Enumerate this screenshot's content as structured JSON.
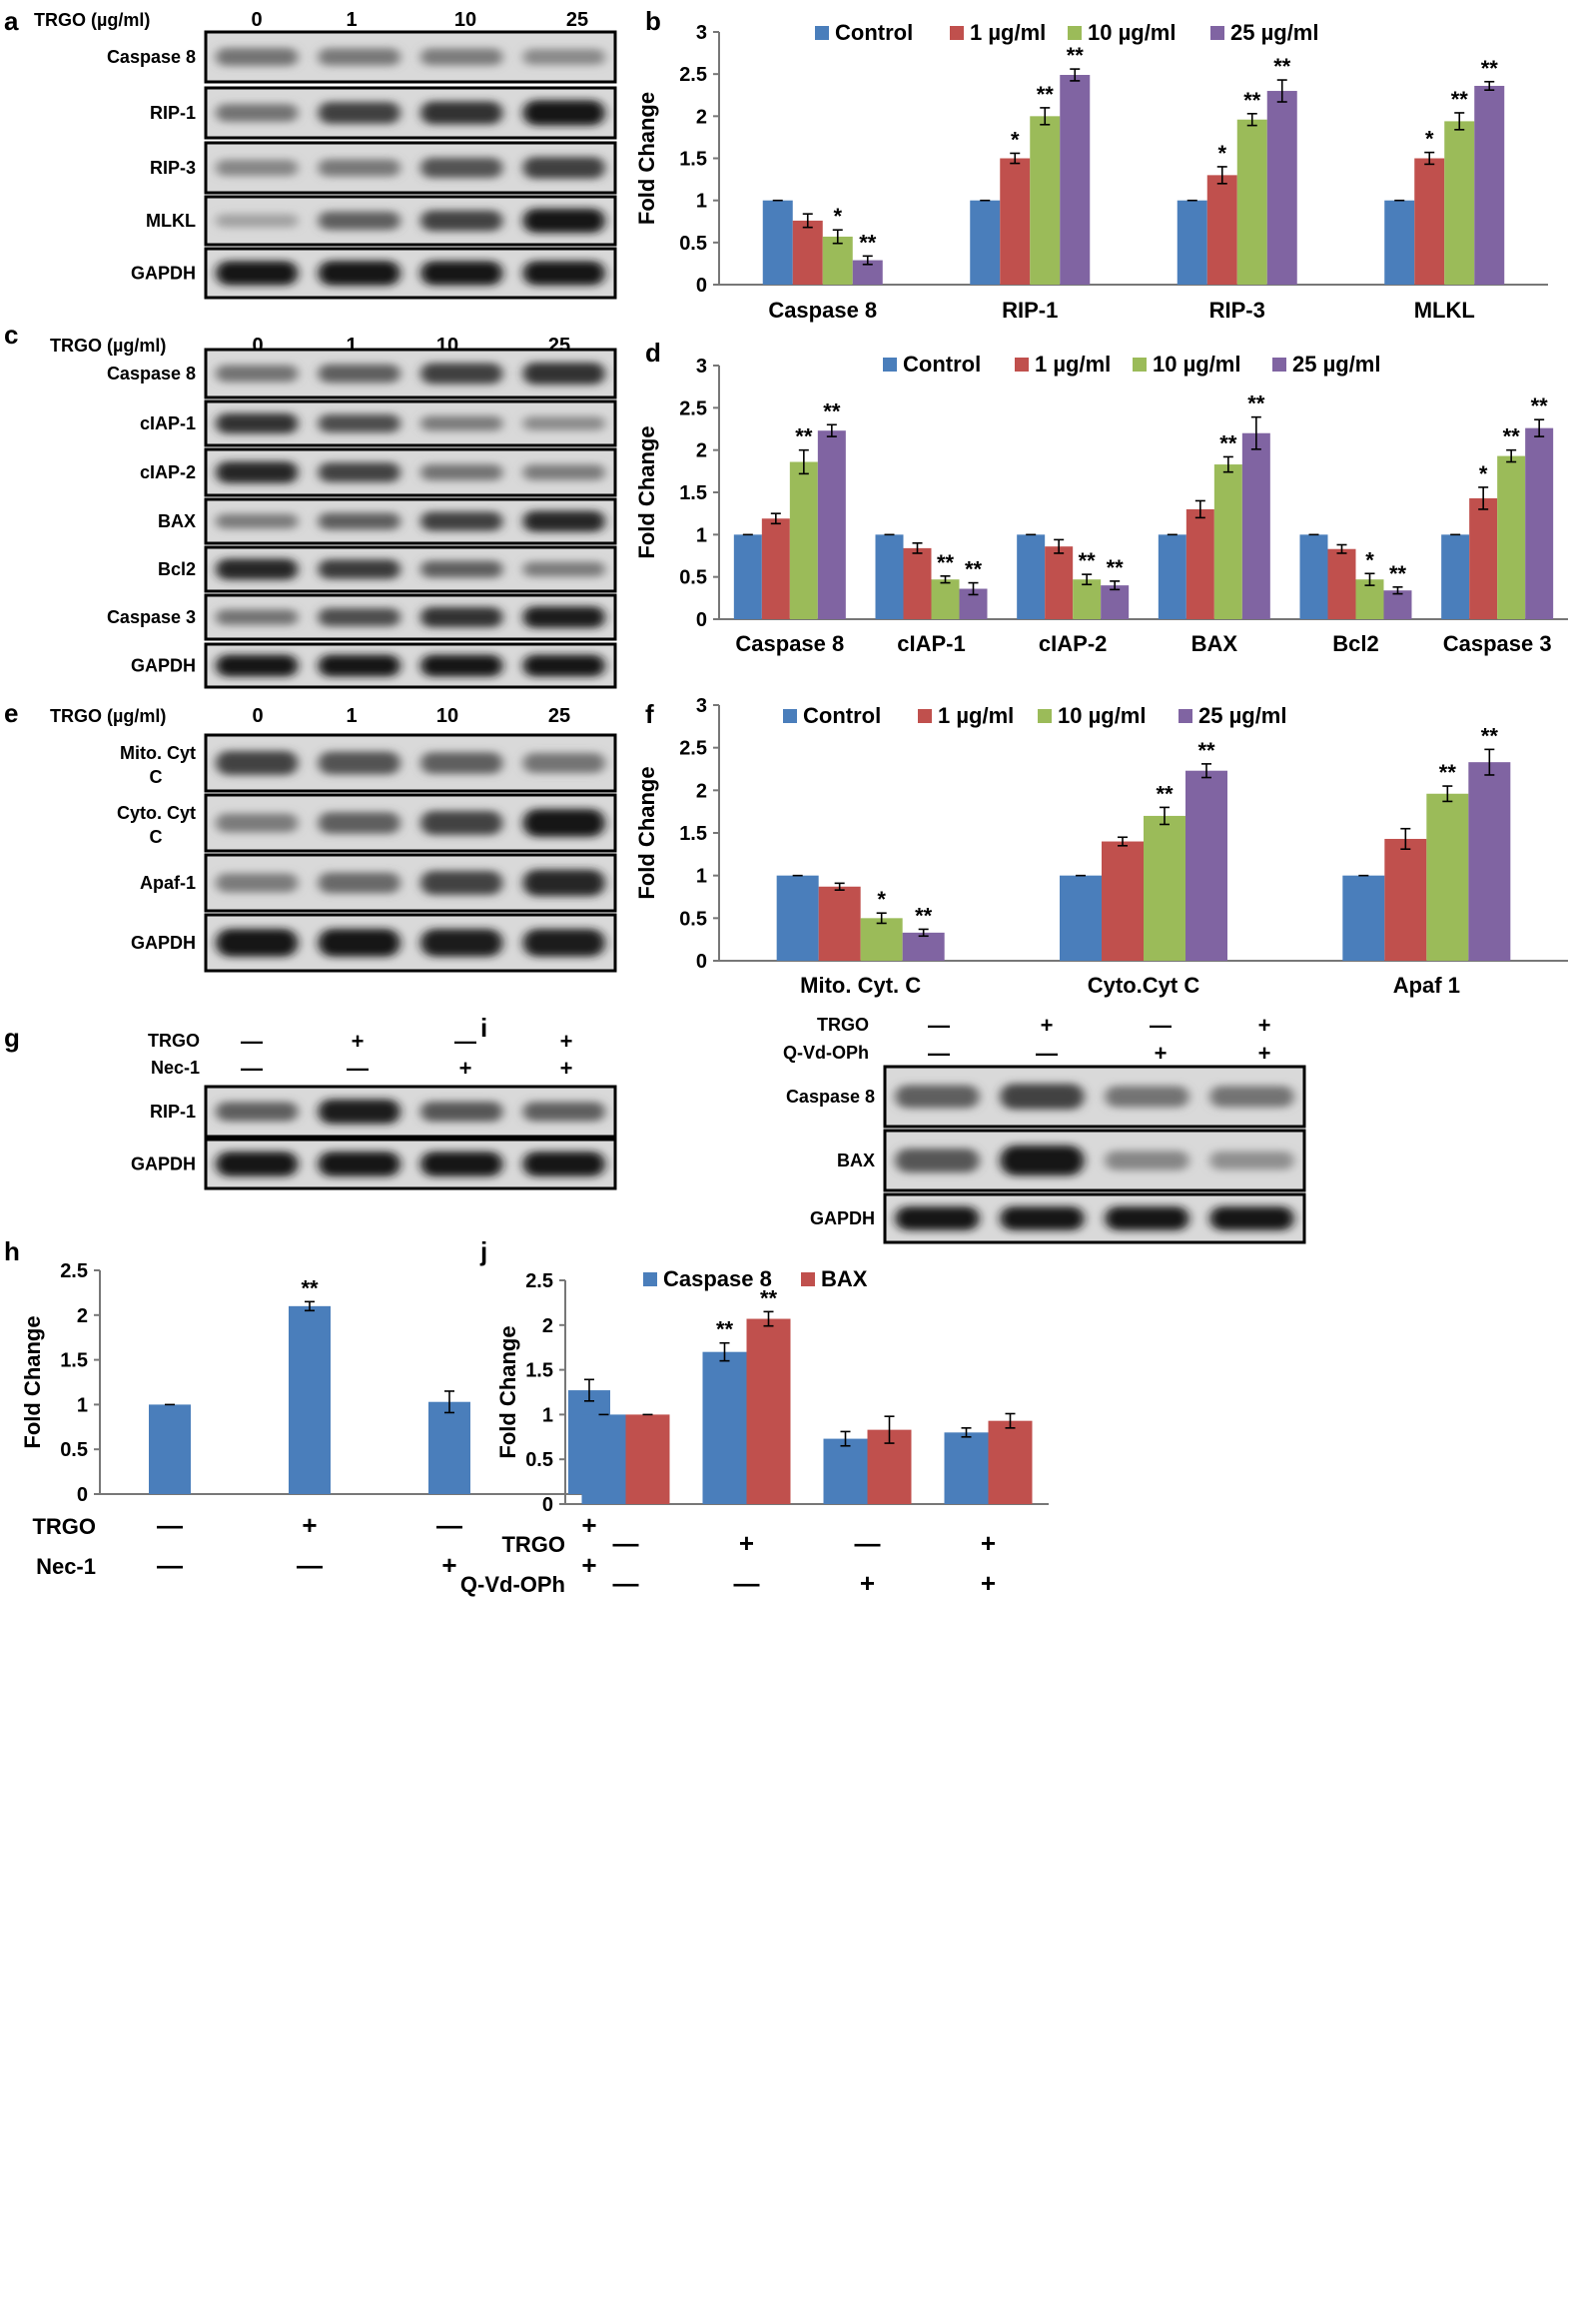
{
  "panels": {
    "a": {
      "letter": "a",
      "header_label": "TRGO (µg/ml)",
      "lanes": [
        "0",
        "1",
        "10",
        "25"
      ],
      "blots": [
        {
          "label": "Caspase 8",
          "intensity": [
            0.45,
            0.42,
            0.4,
            0.33
          ]
        },
        {
          "label": "RIP-1",
          "intensity": [
            0.45,
            0.72,
            0.8,
            0.95
          ]
        },
        {
          "label": "RIP-3",
          "intensity": [
            0.35,
            0.42,
            0.62,
            0.72
          ]
        },
        {
          "label": "MLKL",
          "intensity": [
            0.2,
            0.55,
            0.7,
            0.95
          ]
        },
        {
          "label": "GAPDH",
          "intensity": [
            0.92,
            0.95,
            0.92,
            0.92
          ]
        }
      ]
    },
    "c": {
      "letter": "c",
      "header_label": "TRGO (µg/ml)",
      "lanes": [
        "0",
        "1",
        "10",
        "25"
      ],
      "blots": [
        {
          "label": "Caspase 8",
          "intensity": [
            0.45,
            0.55,
            0.72,
            0.8
          ]
        },
        {
          "label": "cIAP-1",
          "intensity": [
            0.8,
            0.65,
            0.4,
            0.32
          ]
        },
        {
          "label": "cIAP-2",
          "intensity": [
            0.85,
            0.7,
            0.45,
            0.4
          ]
        },
        {
          "label": "BAX",
          "intensity": [
            0.4,
            0.55,
            0.72,
            0.85
          ]
        },
        {
          "label": "Bcl2",
          "intensity": [
            0.85,
            0.75,
            0.55,
            0.4
          ]
        },
        {
          "label": "Caspase 3",
          "intensity": [
            0.45,
            0.65,
            0.8,
            0.9
          ]
        },
        {
          "label": "GAPDH",
          "intensity": [
            0.95,
            0.95,
            0.95,
            0.95
          ]
        }
      ]
    },
    "e": {
      "letter": "e",
      "header_label": "TRGO (µg/ml)",
      "lanes": [
        "0",
        "1",
        "10",
        "25"
      ],
      "blots": [
        {
          "label": "Mito. Cyt C",
          "intensity": [
            0.7,
            0.62,
            0.55,
            0.45
          ]
        },
        {
          "label": "Cyto. Cyt C",
          "intensity": [
            0.4,
            0.55,
            0.7,
            0.92
          ]
        },
        {
          "label": "Apaf-1",
          "intensity": [
            0.4,
            0.5,
            0.7,
            0.85
          ]
        },
        {
          "label": "GAPDH",
          "intensity": [
            0.92,
            0.92,
            0.9,
            0.9
          ]
        }
      ]
    },
    "g": {
      "letter": "g",
      "conditions": [
        {
          "label": "TRGO",
          "values": [
            "—",
            "+",
            "—",
            "+"
          ]
        },
        {
          "label": "Nec-1",
          "values": [
            "—",
            "—",
            "+",
            "+"
          ]
        }
      ],
      "blots": [
        {
          "label": "RIP-1",
          "intensity": [
            0.55,
            0.9,
            0.6,
            0.55
          ]
        },
        {
          "label": "GAPDH",
          "intensity": [
            0.95,
            0.95,
            0.95,
            0.95
          ]
        }
      ]
    },
    "i": {
      "letter": "i",
      "conditions": [
        {
          "label": "TRGO",
          "values": [
            "—",
            "+",
            "—",
            "+"
          ]
        },
        {
          "label": "Q-Vd-OPh",
          "values": [
            "—",
            "—",
            "+",
            "+"
          ]
        }
      ],
      "blots": [
        {
          "label": "Caspase 8",
          "intensity": [
            0.55,
            0.7,
            0.45,
            0.45
          ]
        },
        {
          "label": "BAX",
          "intensity": [
            0.6,
            0.95,
            0.35,
            0.3
          ]
        },
        {
          "label": "GAPDH",
          "intensity": [
            0.92,
            0.92,
            0.92,
            0.92
          ]
        }
      ]
    }
  },
  "colors": {
    "control": "#4a7ebb",
    "dose1": "#c0504d",
    "dose10": "#9bbb59",
    "dose25": "#8064a2",
    "text": "#000000"
  },
  "chart_data": [
    {
      "id": "b",
      "letter": "b",
      "type": "bar",
      "ylabel": "Fold Change",
      "ylim": [
        0,
        3
      ],
      "yticks": [
        "0",
        "0.5",
        "1",
        "1.5",
        "2",
        "2.5",
        "3"
      ],
      "categories": [
        "Caspase 8",
        "RIP-1",
        "RIP-3",
        "MLKL"
      ],
      "series": [
        {
          "name": "Control",
          "color": "#4a7ebb",
          "values": [
            1,
            1,
            1,
            1
          ],
          "errors": [
            0,
            0,
            0,
            0
          ],
          "stars": [
            "",
            "",
            "",
            ""
          ]
        },
        {
          "name": "1 µg/ml",
          "color": "#c0504d",
          "values": [
            0.76,
            1.5,
            1.3,
            1.5
          ],
          "errors": [
            0.08,
            0.06,
            0.1,
            0.07
          ],
          "stars": [
            "",
            "*",
            "*",
            "*"
          ]
        },
        {
          "name": "10 µg/ml",
          "color": "#9bbb59",
          "values": [
            0.57,
            2.0,
            1.96,
            1.94
          ],
          "errors": [
            0.08,
            0.1,
            0.07,
            0.1
          ],
          "stars": [
            "*",
            "**",
            "**",
            "**"
          ]
        },
        {
          "name": "25 µg/ml",
          "color": "#8064a2",
          "values": [
            0.29,
            2.49,
            2.3,
            2.36
          ],
          "errors": [
            0.05,
            0.07,
            0.13,
            0.05
          ],
          "stars": [
            "**",
            "**",
            "**",
            "**"
          ]
        }
      ],
      "legend": "top"
    },
    {
      "id": "d",
      "letter": "d",
      "type": "bar",
      "ylabel": "Fold Change",
      "ylim": [
        0,
        3
      ],
      "yticks": [
        "0",
        "0.5",
        "1",
        "1.5",
        "2",
        "2.5",
        "3"
      ],
      "categories": [
        "Caspase 8",
        "cIAP-1",
        "cIAP-2",
        "BAX",
        "Bcl2",
        "Caspase 3"
      ],
      "series": [
        {
          "name": "Control",
          "color": "#4a7ebb",
          "values": [
            1,
            1,
            1,
            1,
            1,
            1
          ],
          "errors": [
            0,
            0,
            0,
            0,
            0,
            0
          ],
          "stars": [
            "",
            "",
            "",
            "",
            "",
            ""
          ]
        },
        {
          "name": "1 µg/ml",
          "color": "#c0504d",
          "values": [
            1.19,
            0.84,
            0.86,
            1.3,
            0.83,
            1.43
          ],
          "errors": [
            0.06,
            0.06,
            0.08,
            0.1,
            0.05,
            0.13
          ],
          "stars": [
            "",
            "",
            "",
            "",
            "",
            "*"
          ]
        },
        {
          "name": "10 µg/ml",
          "color": "#9bbb59",
          "values": [
            1.86,
            0.47,
            0.47,
            1.83,
            0.47,
            1.93
          ],
          "errors": [
            0.14,
            0.04,
            0.06,
            0.09,
            0.07,
            0.07
          ],
          "stars": [
            "**",
            "**",
            "**",
            "**",
            "*",
            "**"
          ]
        },
        {
          "name": "25 µg/ml",
          "color": "#8064a2",
          "values": [
            2.23,
            0.36,
            0.4,
            2.2,
            0.34,
            2.26
          ],
          "errors": [
            0.07,
            0.07,
            0.05,
            0.19,
            0.04,
            0.1
          ],
          "stars": [
            "**",
            "**",
            "**",
            "**",
            "**",
            "**"
          ]
        }
      ],
      "legend": "top"
    },
    {
      "id": "f",
      "letter": "f",
      "type": "bar",
      "ylabel": "Fold Change",
      "ylim": [
        0,
        3
      ],
      "yticks": [
        "0",
        "0.5",
        "1",
        "1.5",
        "2",
        "2.5",
        "3"
      ],
      "categories": [
        "Mito. Cyt. C",
        "Cyto.Cyt C",
        "Apaf 1"
      ],
      "series": [
        {
          "name": "Control",
          "color": "#4a7ebb",
          "values": [
            1,
            1,
            1
          ],
          "errors": [
            0,
            0,
            0
          ],
          "stars": [
            "",
            "",
            ""
          ]
        },
        {
          "name": "1 µg/ml",
          "color": "#c0504d",
          "values": [
            0.87,
            1.4,
            1.43
          ],
          "errors": [
            0.04,
            0.05,
            0.12
          ],
          "stars": [
            "",
            "",
            ""
          ]
        },
        {
          "name": "10 µg/ml",
          "color": "#9bbb59",
          "values": [
            0.5,
            1.7,
            1.96
          ],
          "errors": [
            0.06,
            0.1,
            0.09
          ],
          "stars": [
            "*",
            "**",
            "**"
          ]
        },
        {
          "name": "25 µg/ml",
          "color": "#8064a2",
          "values": [
            0.33,
            2.23,
            2.33
          ],
          "errors": [
            0.04,
            0.08,
            0.15
          ],
          "stars": [
            "**",
            "**",
            "**"
          ]
        }
      ],
      "legend": "top"
    },
    {
      "id": "h",
      "letter": "h",
      "type": "bar",
      "ylabel": "Fold Change",
      "ylim": [
        0,
        2.5
      ],
      "yticks": [
        "0",
        "0.5",
        "1",
        "1.5",
        "2",
        "2.5"
      ],
      "categories": [
        "1",
        "2",
        "3",
        "4"
      ],
      "series": [
        {
          "name": "",
          "color": "#4a7ebb",
          "values": [
            1.0,
            2.1,
            1.03,
            1.16
          ],
          "errors": [
            0,
            0.05,
            0.12,
            0.12
          ],
          "stars": [
            "",
            "**",
            "",
            ""
          ]
        }
      ],
      "conditions": [
        {
          "label": "TRGO",
          "values": [
            "—",
            "+",
            "—",
            "+"
          ]
        },
        {
          "label": "Nec-1",
          "values": [
            "—",
            "—",
            "+",
            "+"
          ]
        }
      ]
    },
    {
      "id": "j",
      "letter": "j",
      "type": "bar",
      "ylabel": "Fold Change",
      "ylim": [
        0,
        2.5
      ],
      "yticks": [
        "0",
        "0.5",
        "1",
        "1.5",
        "2",
        "2.5"
      ],
      "categories": [
        "1",
        "2",
        "3",
        "4"
      ],
      "series": [
        {
          "name": "Caspase 8",
          "color": "#4a7ebb",
          "values": [
            1.0,
            1.7,
            0.73,
            0.8
          ],
          "errors": [
            0,
            0.1,
            0.08,
            0.05
          ],
          "stars": [
            "",
            "**",
            "",
            ""
          ]
        },
        {
          "name": "BAX",
          "color": "#c0504d",
          "values": [
            1.0,
            2.07,
            0.83,
            0.93
          ],
          "errors": [
            0,
            0.08,
            0.15,
            0.08
          ],
          "stars": [
            "",
            "**",
            "",
            ""
          ]
        }
      ],
      "conditions": [
        {
          "label": "TRGO",
          "values": [
            "—",
            "+",
            "—",
            "+"
          ]
        },
        {
          "label": "Q-Vd-OPh",
          "values": [
            "—",
            "—",
            "+",
            "+"
          ]
        }
      ],
      "legend": "top"
    }
  ]
}
